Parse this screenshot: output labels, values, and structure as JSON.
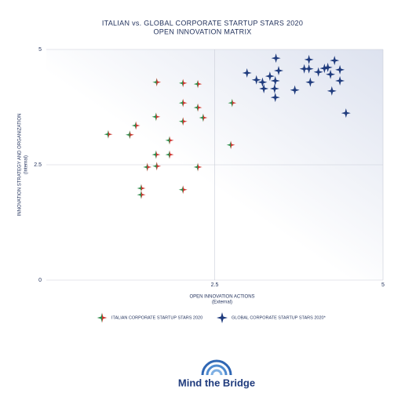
{
  "chart_data": {
    "type": "scatter",
    "title": "ITALIAN vs. GLOBAL CORPORATE STARTUP STARS 2020",
    "subtitle": "OPEN INNOVATION MATRIX",
    "x_label": "OPEN INNOVATION ACTIONS",
    "x_sublabel": "(External)",
    "y_label": "INNOVATION STRATEGY AND ORGANIZATION",
    "y_sublabel": "(Internal)",
    "xlim": [
      0,
      5
    ],
    "ylim": [
      0,
      5
    ],
    "xticks": [
      2.5,
      5
    ],
    "yticks": [
      0,
      2.5,
      5
    ],
    "grid": true,
    "series": [
      {
        "name": "ITALIAN CORPORATE STARTUP STARS 2020",
        "color": "#c8352e",
        "x": [
          1.64,
          2.03,
          2.25,
          2.03,
          2.25,
          1.63,
          2.33,
          2.03,
          2.76,
          1.33,
          0.92,
          1.24,
          1.83,
          2.74,
          1.63,
          1.83,
          1.5,
          1.64,
          2.25,
          1.41,
          2.03,
          1.41
        ],
        "values": [
          4.29,
          4.27,
          4.25,
          3.84,
          3.74,
          3.54,
          3.52,
          3.44,
          3.84,
          3.35,
          3.16,
          3.15,
          3.03,
          2.93,
          2.72,
          2.72,
          2.45,
          2.47,
          2.45,
          1.99,
          1.96,
          1.85
        ]
      },
      {
        "name": "GLOBAL CORPORATE STARTUP STARS 2020*",
        "color": "#1f3b7d",
        "x": [
          2.98,
          3.41,
          3.9,
          4.28,
          3.12,
          3.21,
          3.32,
          3.4,
          3.45,
          3.83,
          3.9,
          4.13,
          4.04,
          4.18,
          4.36,
          4.22,
          3.23,
          3.39,
          3.69,
          3.92,
          4.36,
          4.24,
          3.4,
          4.45
        ],
        "values": [
          4.49,
          4.81,
          4.78,
          4.76,
          4.34,
          4.29,
          4.42,
          4.32,
          4.54,
          4.58,
          4.58,
          4.59,
          4.51,
          4.61,
          4.56,
          4.46,
          4.15,
          4.15,
          4.12,
          4.29,
          4.32,
          4.1,
          3.96,
          3.62
        ]
      }
    ]
  },
  "logo": "Mind the Bridge"
}
